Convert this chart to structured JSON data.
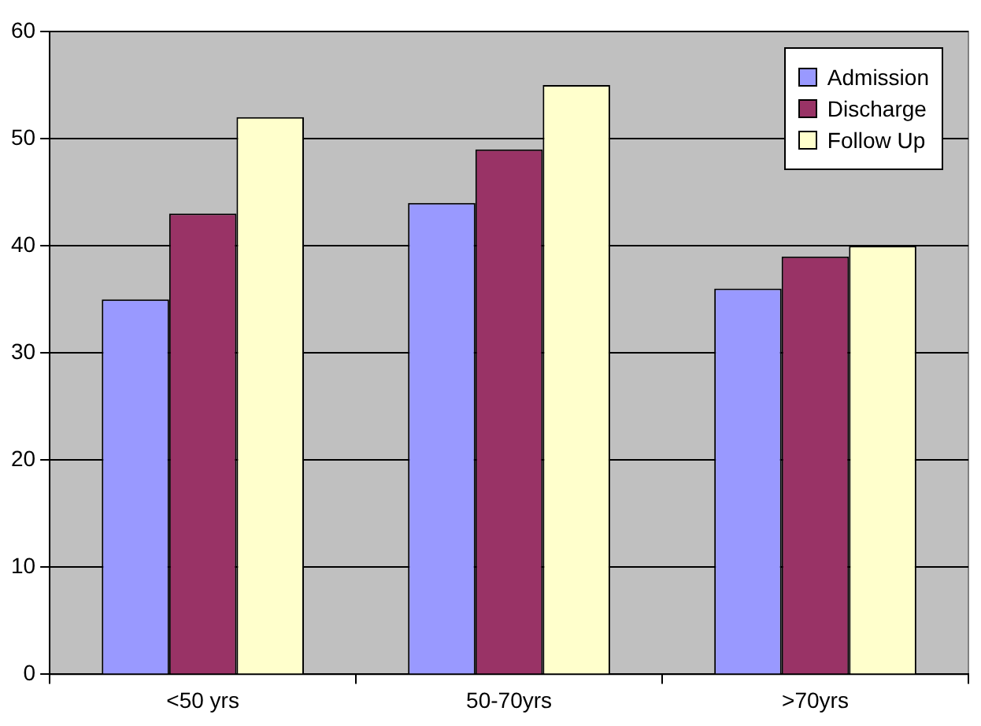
{
  "chart_data": {
    "type": "bar",
    "categories": [
      "<50 yrs",
      "50-70yrs",
      ">70yrs"
    ],
    "series": [
      {
        "name": "Admission",
        "color": "#9999ff",
        "values": [
          35,
          44,
          36
        ]
      },
      {
        "name": "Discharge",
        "color": "#993366",
        "values": [
          43,
          49,
          39
        ]
      },
      {
        "name": "Follow Up",
        "color": "#ffffcc",
        "values": [
          52,
          55,
          40
        ]
      }
    ],
    "ylim": [
      0,
      60
    ],
    "yticks": [
      0,
      10,
      20,
      30,
      40,
      50,
      60
    ],
    "grid": "y",
    "legend": "top right"
  }
}
